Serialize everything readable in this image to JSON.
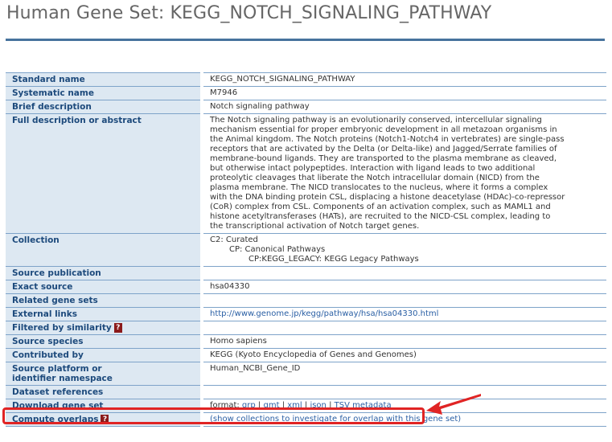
{
  "page": {
    "title": "Human Gene Set: KEGG_NOTCH_SIGNALING_PATHWAY"
  },
  "rows": {
    "standard_name": {
      "label": "Standard name",
      "value": "KEGG_NOTCH_SIGNALING_PATHWAY"
    },
    "systematic_name": {
      "label": "Systematic name",
      "value": "M7946"
    },
    "brief_description": {
      "label": "Brief description",
      "value": "Notch signaling pathway"
    },
    "full_description": {
      "label": "Full description or abstract",
      "lines": [
        "The Notch signaling pathway is an evolutionarily conserved, intercellular signaling",
        "mechanism essential for proper embryonic development in all metazoan organisms in",
        "the Animal kingdom. The Notch proteins (Notch1-Notch4 in vertebrates) are single-pass",
        "receptors that are activated by the Delta (or Delta-like) and Jagged/Serrate families of",
        "membrane-bound ligands. They are transported to the plasma membrane as cleaved,",
        "but otherwise intact polypeptides. Interaction with ligand leads to two additional",
        "proteolytic cleavages that liberate the Notch intracellular domain (NICD) from the",
        "plasma membrane. The NICD translocates to the nucleus, where it forms a complex",
        "with the DNA binding protein CSL, displacing a histone deacetylase (HDAc)-co-repressor",
        "(CoR) complex from CSL. Components of an activation complex, such as MAML1 and",
        "histone acetyltransferases (HATs), are recruited to the NICD-CSL complex, leading to",
        "the transcriptional activation of Notch target genes."
      ]
    },
    "collection": {
      "label": "Collection",
      "c2": "C2: Curated",
      "cp": "CP: Canonical Pathways",
      "kegg": "CP:KEGG_LEGACY: KEGG Legacy Pathways"
    },
    "source_publication": {
      "label": "Source publication",
      "value": ""
    },
    "exact_source": {
      "label": "Exact source",
      "value": "hsa04330"
    },
    "related_gene_sets": {
      "label": "Related gene sets",
      "value": ""
    },
    "external_links": {
      "label": "External links",
      "value": "http://www.genome.jp/kegg/pathway/hsa/hsa04330.html"
    },
    "filtered_by_similarity": {
      "label": "Filtered by similarity",
      "help": "?",
      "value": ""
    },
    "source_species": {
      "label": "Source species",
      "value": "Homo sapiens"
    },
    "contributed_by": {
      "label": "Contributed by",
      "value": "KEGG (Kyoto Encyclopedia of Genes and Genomes)"
    },
    "source_platform": {
      "label_line1": "Source platform or",
      "label_line2": "identifier namespace",
      "value": "Human_NCBI_Gene_ID"
    },
    "dataset_references": {
      "label": "Dataset references",
      "value": ""
    },
    "download_gene_set": {
      "label": "Download gene set",
      "prefix": "format:",
      "formats": [
        "grp",
        "gmt",
        "xml",
        "json",
        "TSV metadata"
      ],
      "separator": "|"
    },
    "compute_overlaps": {
      "label": "Compute overlaps",
      "help": "?",
      "value": "(show collections to investigate for overlap with this gene set)"
    }
  },
  "annotation": {
    "highlight_color": "#e02424"
  },
  "colors": {
    "header_bg": "#dde8f2",
    "header_text": "#1d4a7c",
    "rule": "#47739d",
    "link": "#2a5fa4",
    "help_bg": "#8b1a1a"
  }
}
